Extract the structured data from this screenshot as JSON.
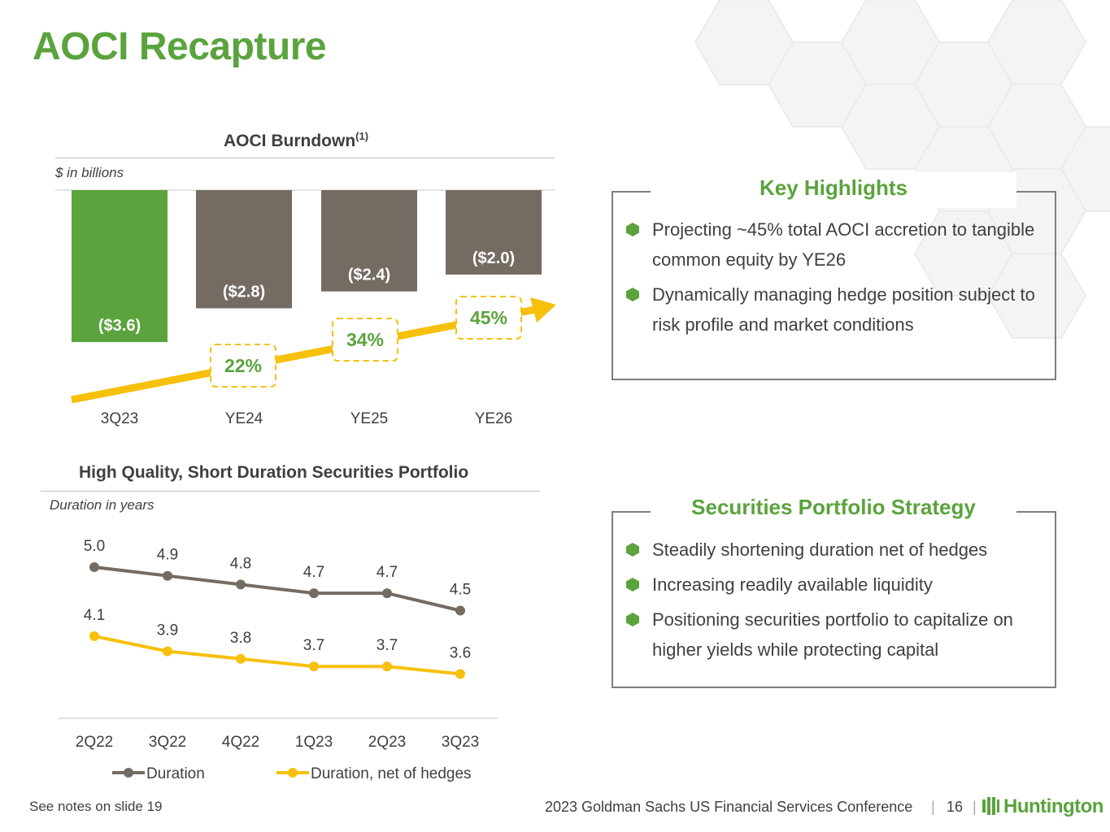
{
  "title": "AOCI Recapture",
  "colors": {
    "green": "#5aa33d",
    "gray": "#746b62",
    "gold": "#f6c00b"
  },
  "chart_data": [
    {
      "type": "bar",
      "title": "AOCI Burndown",
      "title_sup": "(1)",
      "unit_label": "$ in billions",
      "categories": [
        "3Q23",
        "YE24",
        "YE25",
        "YE26"
      ],
      "values": [
        -3.6,
        -2.8,
        -2.4,
        -2.0
      ],
      "value_labels": [
        "($3.6)",
        "($2.8)",
        "($2.4)",
        "($2.0)"
      ],
      "bar_colors": [
        "#5aa33d",
        "#746b62",
        "#746b62",
        "#746b62"
      ],
      "ylim": [
        -3.6,
        0
      ],
      "accretion_labels": [
        "22%",
        "34%",
        "45%"
      ],
      "accretion_values": [
        22,
        34,
        45
      ]
    },
    {
      "type": "line",
      "title": "High Quality, Short Duration Securities Portfolio",
      "unit_label": "Duration in years",
      "categories": [
        "2Q22",
        "3Q22",
        "4Q22",
        "1Q23",
        "2Q23",
        "3Q23"
      ],
      "series": [
        {
          "name": "Duration",
          "values": [
            5.0,
            4.9,
            4.8,
            4.7,
            4.7,
            4.5
          ],
          "labels": [
            "5.0",
            "4.9",
            "4.8",
            "4.7",
            "4.7",
            "4.5"
          ],
          "color": "#746b62"
        },
        {
          "name": "Duration, net of hedges",
          "values": [
            4.1,
            3.9,
            3.8,
            3.7,
            3.7,
            3.6
          ],
          "labels": [
            "4.1",
            "3.9",
            "3.8",
            "3.7",
            "3.7",
            "3.6"
          ],
          "color": "#f6c00b"
        }
      ],
      "legend_position": "bottom"
    }
  ],
  "key_highlights": {
    "heading": "Key Highlights",
    "items": [
      "Projecting ~45% total AOCI accretion to tangible common equity by YE26",
      "Dynamically managing hedge position subject to risk profile and market conditions"
    ]
  },
  "strategy": {
    "heading": "Securities Portfolio Strategy",
    "items": [
      "Steadily shortening duration net of hedges",
      "Increasing readily available liquidity",
      "Positioning securities portfolio to capitalize on higher yields while protecting capital"
    ]
  },
  "footer": {
    "note": "See notes on slide 19",
    "conference": "2023 Goldman Sachs US Financial Services Conference",
    "page": "16",
    "logo_text": "Huntington"
  }
}
